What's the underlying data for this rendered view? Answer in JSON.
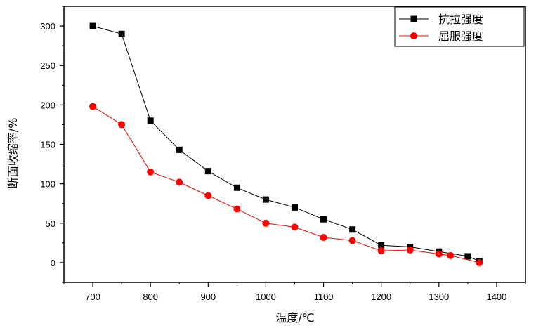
{
  "chart_data": {
    "type": "line",
    "xlabel": "温度/℃",
    "ylabel": "断面收缩率/%",
    "xlim": [
      650,
      1450
    ],
    "ylim": [
      -25,
      325
    ],
    "x_ticks": [
      700,
      800,
      900,
      1000,
      1100,
      1200,
      1300,
      1400
    ],
    "y_ticks": [
      0,
      50,
      100,
      150,
      200,
      250,
      300
    ],
    "grid": false,
    "legend_position": "top-right",
    "series": [
      {
        "name": "抗拉强度",
        "color": "#000000",
        "marker": "square",
        "x": [
          700,
          750,
          800,
          850,
          900,
          950,
          1000,
          1050,
          1100,
          1150,
          1200,
          1250,
          1300,
          1350,
          1370
        ],
        "y": [
          300,
          290,
          180,
          143,
          116,
          95,
          80,
          70,
          55,
          42,
          22,
          20,
          14,
          8,
          2
        ]
      },
      {
        "name": "屈服强度",
        "color": "#ff0000",
        "marker": "circle",
        "x": [
          700,
          750,
          800,
          850,
          900,
          950,
          1000,
          1050,
          1100,
          1150,
          1200,
          1250,
          1300,
          1320,
          1370
        ],
        "y": [
          198,
          175,
          115,
          102,
          85,
          68,
          50,
          45,
          32,
          28,
          15,
          16,
          11,
          9,
          0
        ]
      }
    ]
  }
}
